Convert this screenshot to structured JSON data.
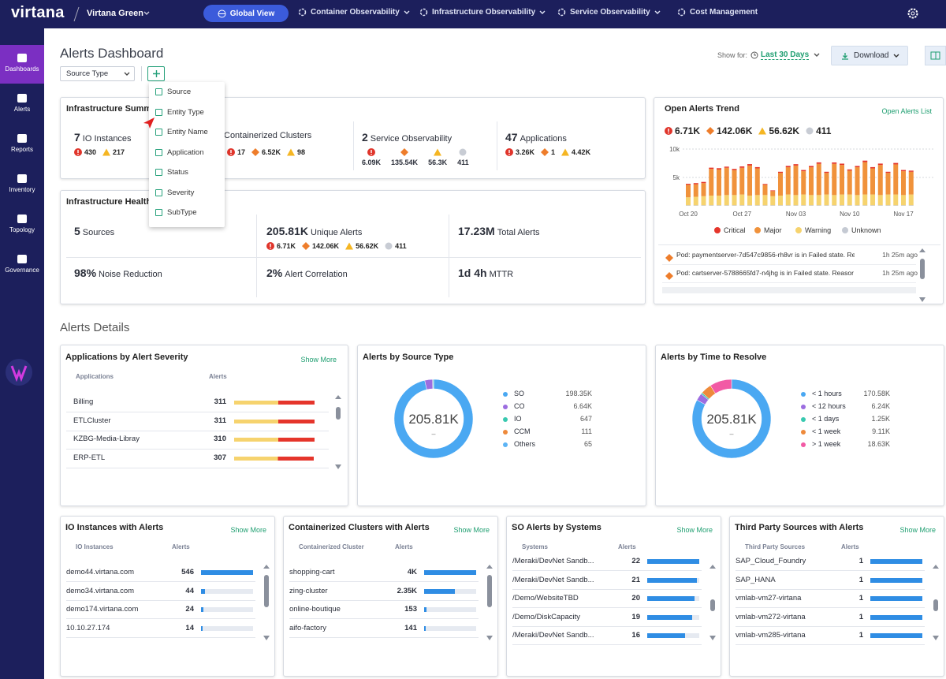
{
  "nav": {
    "logo": "virtana",
    "workspace": "Virtana Green",
    "tabs": [
      "Global View",
      "Container Observability",
      "Infrastructure Observability",
      "Service Observability",
      "Cost Management"
    ]
  },
  "sidebar": [
    "Dashboards",
    "Alerts",
    "Reports",
    "Inventory",
    "Topology",
    "Governance"
  ],
  "header": {
    "title": "Alerts Dashboard",
    "filter": "Source Type",
    "show_for": "Show for:",
    "range": "Last 30 Days",
    "download": "Download"
  },
  "filter_menu": [
    "Source",
    "Entity Type",
    "Entity Name",
    "Application",
    "Status",
    "Severity",
    "SubType"
  ],
  "infra_summary": {
    "title": "Infrastructure Summary",
    "items": [
      {
        "count": "7",
        "label": "IO Instances",
        "stats": [
          {
            "level": "critical",
            "text": "430"
          },
          {
            "level": "warning",
            "text": "217"
          }
        ]
      },
      {
        "label": "Containerized Clusters",
        "stats": [
          {
            "level": "critical",
            "text": "17"
          },
          {
            "level": "major",
            "text": "6.52K"
          },
          {
            "level": "warning",
            "text": "98"
          }
        ]
      },
      {
        "count": "2",
        "label": "Service Observability",
        "stacked": true,
        "stats": [
          {
            "level": "critical",
            "text": "6.09K"
          },
          {
            "level": "major",
            "text": "135.54K"
          },
          {
            "level": "warning",
            "text": "56.3K"
          },
          {
            "level": "unknown",
            "text": "411"
          }
        ]
      },
      {
        "count": "47",
        "label": "Applications",
        "stats": [
          {
            "level": "critical",
            "text": "3.26K"
          },
          {
            "level": "major",
            "text": "1"
          },
          {
            "level": "warning",
            "text": "4.42K"
          }
        ]
      }
    ]
  },
  "infra_health": {
    "title": "Infrastructure Health",
    "metrics": [
      {
        "value": "5",
        "label": "Sources"
      },
      {
        "value": "205.81K",
        "label": "Unique Alerts",
        "stats": [
          {
            "level": "critical",
            "text": "6.71K"
          },
          {
            "level": "major",
            "text": "142.06K"
          },
          {
            "level": "warning",
            "text": "56.62K"
          },
          {
            "level": "unknown",
            "text": "411"
          }
        ]
      },
      {
        "value": "17.23M",
        "label": "Total Alerts"
      },
      {
        "value": "98%",
        "label": "Noise Reduction"
      },
      {
        "value": "2%",
        "label": "Alert Correlation"
      },
      {
        "value": "1d 4h",
        "label": "MTTR"
      }
    ]
  },
  "trend": {
    "title": "Open Alerts Trend",
    "link": "Open Alerts List",
    "stats": [
      {
        "level": "critical",
        "text": "6.71K"
      },
      {
        "level": "major",
        "text": "142.06K"
      },
      {
        "level": "warning",
        "text": "56.62K"
      },
      {
        "level": "unknown",
        "text": "411"
      }
    ],
    "chart_data": {
      "type": "bar",
      "stacked": true,
      "categories": [
        "Oct 20",
        null,
        null,
        null,
        null,
        null,
        null,
        "Oct 27",
        null,
        null,
        null,
        null,
        null,
        null,
        "Nov 03",
        null,
        null,
        null,
        null,
        null,
        null,
        "Nov 10",
        null,
        null,
        null,
        null,
        null,
        null,
        "Nov 17",
        null
      ],
      "series": [
        {
          "name": "Critical",
          "color": "#e5352b",
          "values": [
            180,
            200,
            210,
            220,
            230,
            200,
            210,
            240,
            250,
            220,
            150,
            120,
            200,
            230,
            240,
            210,
            220,
            250,
            200,
            240,
            230,
            210,
            220,
            260,
            220,
            240,
            200,
            250,
            210,
            200
          ]
        },
        {
          "name": "Major",
          "color": "#f0923b",
          "values": [
            2200,
            2200,
            2300,
            4700,
            4600,
            4800,
            4400,
            4700,
            5300,
            4700,
            1800,
            900,
            4000,
            4800,
            5200,
            4100,
            4900,
            5500,
            3800,
            5500,
            5200,
            4200,
            4900,
            5700,
            4600,
            5300,
            3800,
            5300,
            4200,
            4000
          ]
        },
        {
          "name": "Warning",
          "color": "#f6d36e",
          "values": [
            1400,
            1500,
            1600,
            1700,
            1700,
            1800,
            1800,
            1900,
            1700,
            1800,
            1800,
            1600,
            1700,
            1900,
            1800,
            1900,
            1800,
            1800,
            1900,
            1800,
            1900,
            1900,
            1800,
            1900,
            1900,
            1800,
            1900,
            1900,
            1800,
            1900
          ]
        },
        {
          "name": "Unknown",
          "color": "#c5cad3",
          "values": [
            100,
            100,
            100,
            100,
            100,
            100,
            100,
            100,
            100,
            100,
            100,
            100,
            100,
            100,
            100,
            100,
            100,
            100,
            100,
            100,
            100,
            100,
            100,
            100,
            100,
            100,
            100,
            100,
            100,
            100
          ]
        }
      ],
      "ylim": [
        0,
        10000
      ],
      "yticks": [
        {
          "value": 5000,
          "label": "5k"
        },
        {
          "value": 10000,
          "label": "10k"
        }
      ],
      "grid": true,
      "legend": "bottom"
    },
    "alerts": [
      {
        "text": "Pod: paymentserver-7d547c9856-rh8vr is in Failed state. Re",
        "time": "1h 25m ago"
      },
      {
        "text": "Pod: cartserver-5788665fd7-n4jhg is in Failed state. Reasor",
        "time": "1h 25m ago"
      }
    ]
  },
  "details_title": "Alerts Details",
  "severity": {
    "title": "Applications by Alert Severity",
    "link": "Show More",
    "columns": [
      "Applications",
      "Alerts"
    ],
    "colors": [
      "#f6d36e",
      "#e5352b"
    ],
    "rows": [
      {
        "name": "Billing",
        "value": 311
      },
      {
        "name": "ETLCluster",
        "value": 311
      },
      {
        "name": "KZBG-Media-Libray",
        "value": 310
      },
      {
        "name": "ERP-ETL",
        "value": 307
      }
    ]
  },
  "source_type": {
    "title": "Alerts by Source Type",
    "chart_data": {
      "type": "donut",
      "center_label": "205.81K",
      "center_sublabel": "–",
      "categories": [
        "SO",
        "CO",
        "IO",
        "CCM",
        "Others"
      ],
      "values": [
        198350,
        6640,
        647,
        111,
        65
      ],
      "value_labels": [
        "198.35K",
        "6.64K",
        "647",
        "111",
        "65"
      ],
      "colors": [
        "#4aa8f2",
        "#9c6de0",
        "#39c9b0",
        "#ee8a3b",
        "#5cb4f5"
      ]
    }
  },
  "time_to_resolve": {
    "title": "Alerts by Time to Resolve",
    "chart_data": {
      "type": "donut",
      "center_label": "205.81K",
      "center_sublabel": "–",
      "categories": [
        "< 1 hours",
        "< 12 hours",
        "< 1 days",
        "< 1 week",
        "> 1 week"
      ],
      "values": [
        170580,
        6240,
        1250,
        9110,
        18630
      ],
      "value_labels": [
        "170.58K",
        "6.24K",
        "1.25K",
        "9.11K",
        "18.63K"
      ],
      "colors": [
        "#4aa8f2",
        "#9c6de0",
        "#39c9b0",
        "#ee8a3b",
        "#f25aa5"
      ]
    }
  },
  "lists": [
    {
      "title": "IO Instances with Alerts",
      "link": "Show More",
      "columns": [
        "IO Instances",
        "Alerts"
      ],
      "color": "#2f8de4",
      "rows": [
        {
          "name": "demo44.virtana.com",
          "value": 546
        },
        {
          "name": "demo34.virtana.com",
          "value": 44
        },
        {
          "name": "demo174.virtana.com",
          "value": 24
        },
        {
          "name": "10.10.27.174",
          "value": 14
        }
      ]
    },
    {
      "title": "Containerized Clusters with Alerts",
      "link": "Show More",
      "columns": [
        "Containerized Cluster",
        "Alerts"
      ],
      "color": "#2f8de4",
      "rows": [
        {
          "name": "shopping-cart",
          "value": 4000,
          "label": "4K"
        },
        {
          "name": "zing-cluster",
          "value": 2350,
          "label": "2.35K"
        },
        {
          "name": "online-boutique",
          "value": 153
        },
        {
          "name": "aifo-factory",
          "value": 141
        }
      ]
    },
    {
      "title": "SO Alerts by Systems",
      "link": "Show More",
      "columns": [
        "Systems",
        "Alerts"
      ],
      "color": "#2f8de4",
      "scrolled": true,
      "rows": [
        {
          "name": "/Meraki/DevNet Sandb...",
          "value": 22
        },
        {
          "name": "/Meraki/DevNet Sandb...",
          "value": 21
        },
        {
          "name": "/Demo/WebsiteTBD",
          "value": 20
        },
        {
          "name": "/Demo/DiskCapacity",
          "value": 19
        },
        {
          "name": "/Meraki/DevNet Sandb...",
          "value": 16
        }
      ]
    },
    {
      "title": "Third Party Sources with Alerts",
      "link": "Show More",
      "columns": [
        "Third Party Sources",
        "Alerts"
      ],
      "color": "#2f8de4",
      "scrolled": true,
      "rows": [
        {
          "name": "SAP_Cloud_Foundry",
          "value": 1
        },
        {
          "name": "SAP_HANA",
          "value": 1
        },
        {
          "name": "vmlab-vm27-virtana",
          "value": 1
        },
        {
          "name": "vmlab-vm272-virtana",
          "value": 1
        },
        {
          "name": "vmlab-vm285-virtana",
          "value": 1
        }
      ]
    }
  ]
}
